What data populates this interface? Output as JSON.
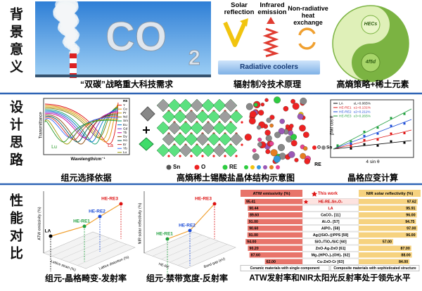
{
  "sections": [
    "背景意义",
    "设计思路",
    "性能对比"
  ],
  "background": {
    "co2_text": "CO",
    "co2_subscript": "2",
    "caption": "“双碳”战略重大科技需求",
    "cooling": {
      "solar": "Solar reflection",
      "infrared": "Infrared emission",
      "nonradiative": "Non-radiative heat exchange",
      "cooler": "Radiative coolers",
      "caption": "辐射制冷技术原理"
    },
    "strategy": {
      "hecs": "HECs",
      "f_d": "4f5d",
      "caption": "高熵策略+稀土元素"
    }
  },
  "design": {
    "spectra": {
      "ylabel": "Transmittance",
      "xlabel": "Wavelength/cm⁻¹",
      "first": "La",
      "last": "Lu",
      "legend": [
        "RE",
        "Y",
        "Ce",
        "Pr",
        "Nd",
        "Sm",
        "Eu",
        "Gd",
        "Tb",
        "Dy",
        "Ho",
        "Er",
        "Yb",
        "Lu"
      ],
      "caption": "组元选择依据"
    },
    "structure": {
      "legend": [
        "Sn",
        "O",
        "RE"
      ],
      "caption": "高熵稀土锡酸盐晶体结构示意图"
    },
    "spheres": {
      "legend": [
        "O",
        "Sn",
        "RE"
      ]
    },
    "strain": {
      "ylabel": "βhkl cos θ",
      "xlabel": "4 sin θ",
      "legend": [
        "LA",
        "HE-RE1",
        "HE-RE2",
        "HE-RE3"
      ],
      "strains": [
        "εL=0.065%",
        "ε1=0.131%",
        "ε2=0.211%",
        "ε3=0.265%"
      ],
      "caption": "晶格应变计算"
    }
  },
  "performance": {
    "distortion": {
      "zlabel": "ATW emissivity (%)",
      "xlabel": "Lattice strain (%)",
      "ylabel": "Lattice distortion (%)",
      "points": [
        "LA",
        "HE-RE1",
        "HE-RE2",
        "HE-RE3"
      ],
      "caption": "组元-晶格畸变-发射率"
    },
    "bandgap": {
      "zlabel": "NIR solar reflectivity (%)",
      "xlabel": "HE-RE",
      "ylabel": "Band gap (eV)",
      "points": [
        "HE-RE1",
        "HE-RE2",
        "HE-RE3"
      ],
      "caption": "组元-禁带宽度-反射率"
    },
    "comparison": {
      "type": "bar",
      "highlight": "This work",
      "categories": [
        "HE-RE₃Sn₂O₇",
        "LA",
        "CaCO₃ [11]",
        "Al₂O₃ [57]",
        "AlPO₄ [58]",
        "Ag@SiO₂@PPS [59]",
        "SiO₂/TiO₂/SiC [60]",
        "ZnO-Ag-ZnO [61]",
        "Mg₃(HPO₄)₂(OH)₂ [62]",
        "Cu-ZnO-Cr [63]"
      ],
      "xlim": [
        0,
        100
      ],
      "series": [
        {
          "name": "ATW emissivity (%)",
          "color": "#e8746a",
          "values": [
            95.41,
            90.44,
            89.6,
            91.0,
            90.6,
            91.0,
            94.0,
            90.2,
            87.6,
            62.0
          ],
          "value_labels": [
            "95.41",
            "90.44",
            "89.60",
            "91.00",
            "90.60",
            "91.00",
            "94.00",
            "90.20",
            "87.60",
            "62.00"
          ]
        },
        {
          "name": "NIR solar reflectivity (%)",
          "color": "#f6d27f",
          "values": [
            97.62,
            95.91,
            96.0,
            94.75,
            97.0,
            96.0,
            57.0,
            87.0,
            88.0,
            84.0
          ],
          "value_labels": [
            "97.62",
            "95.91",
            "96.00",
            "94.75",
            "97.00",
            "96.00",
            "57.00",
            "87.00",
            "88.00",
            "84.00"
          ]
        }
      ],
      "groups": [
        "Ceramic materials with single component",
        "Composite materials with sophisticated structure"
      ]
    },
    "caption": "ATW发射率和NIR太阳光反射率处于领先水平"
  }
}
